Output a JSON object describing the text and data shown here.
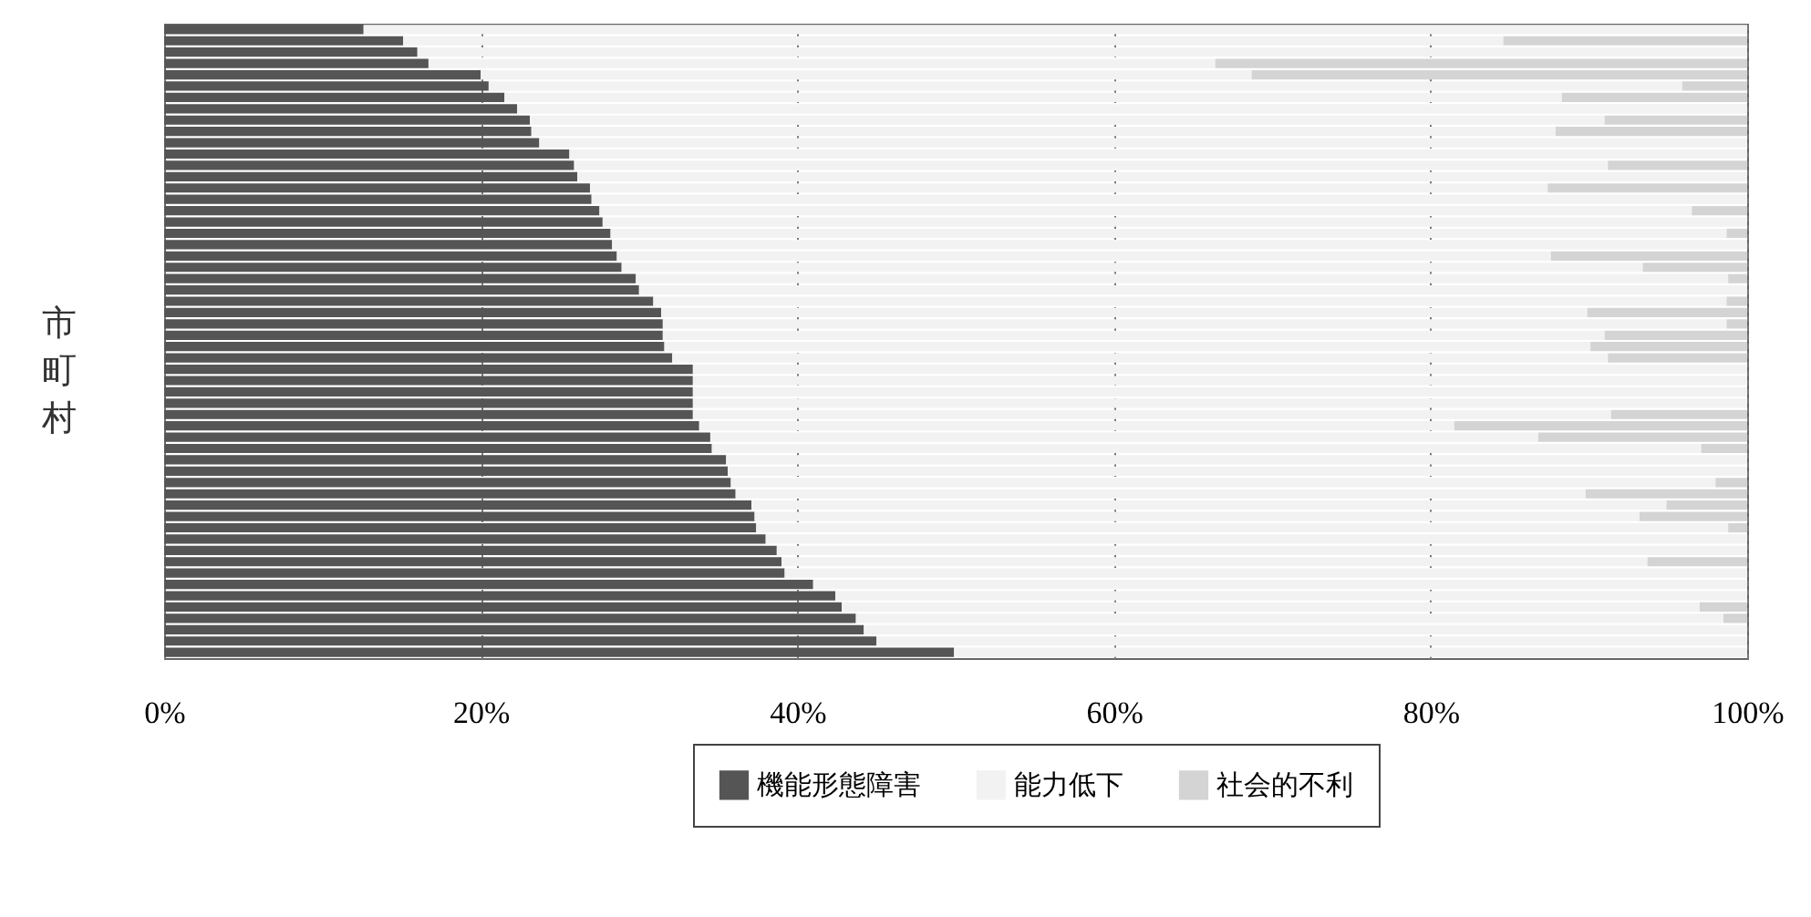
{
  "chart_data": {
    "type": "bar",
    "orientation": "horizontal",
    "stacked": true,
    "ylabel": "市町村",
    "legend": "bottom right",
    "grid": "x",
    "categories": [
      null,
      null,
      null,
      null,
      null,
      null,
      null,
      null,
      null,
      null,
      null,
      null,
      null,
      null,
      null,
      null,
      null,
      null,
      null,
      null,
      null,
      null,
      null,
      null,
      null,
      null,
      null,
      null,
      null,
      null,
      null,
      null,
      null,
      null,
      null,
      null,
      null,
      null,
      null,
      null,
      null,
      null,
      null,
      null,
      null,
      null,
      null,
      null,
      null,
      null,
      null,
      null,
      null,
      null,
      null,
      null
    ],
    "xlim": [
      0,
      100
    ],
    "xticks": [
      {
        "value": 0,
        "label": "0%"
      },
      {
        "value": 20,
        "label": "20%"
      },
      {
        "value": 40,
        "label": "40%"
      },
      {
        "value": 60,
        "label": "60%"
      },
      {
        "value": 80,
        "label": "80%"
      },
      {
        "value": 100,
        "label": "100%"
      }
    ],
    "series": [
      {
        "name": "機能形態障害",
        "color": "#555555",
        "values": [
          12.6,
          15.1,
          16.0,
          16.7,
          20.0,
          20.5,
          21.5,
          22.3,
          23.1,
          23.2,
          23.7,
          25.6,
          25.9,
          26.1,
          26.9,
          27.0,
          27.5,
          27.7,
          28.2,
          28.3,
          28.6,
          28.9,
          29.8,
          30.0,
          30.9,
          31.4,
          31.5,
          31.5,
          31.6,
          32.1,
          33.4,
          33.4,
          33.4,
          33.4,
          33.4,
          33.8,
          34.5,
          34.6,
          35.5,
          35.6,
          35.8,
          36.1,
          37.1,
          37.3,
          37.4,
          38.0,
          38.7,
          39.0,
          39.2,
          41.0,
          42.4,
          42.8,
          43.7,
          44.2,
          45.0,
          49.9
        ]
      },
      {
        "name": "能力低下",
        "color": "#f2f2f2",
        "values": [
          87.4,
          69.5,
          84.0,
          49.7,
          48.7,
          75.4,
          66.8,
          77.7,
          67.9,
          64.7,
          76.3,
          74.4,
          65.3,
          73.9,
          60.5,
          73.0,
          69.0,
          72.3,
          70.5,
          71.7,
          59.0,
          64.5,
          69.0,
          70.0,
          67.8,
          58.5,
          67.2,
          59.5,
          58.5,
          59.1,
          66.6,
          66.6,
          66.6,
          66.6,
          58.0,
          47.7,
          52.3,
          62.5,
          64.5,
          64.4,
          62.2,
          53.7,
          57.8,
          55.9,
          61.4,
          62.0,
          61.3,
          54.7,
          60.8,
          59.0,
          57.6,
          54.2,
          54.8,
          55.8,
          55.0,
          50.1
        ]
      },
      {
        "name": "社会的不利",
        "color": "#d4d4d4",
        "values": [
          0,
          15.4,
          0,
          33.6,
          31.3,
          4.1,
          11.7,
          0,
          9.0,
          12.1,
          0,
          0,
          8.8,
          0,
          12.6,
          0,
          3.5,
          0,
          1.3,
          0,
          12.4,
          6.6,
          1.2,
          0,
          1.3,
          10.1,
          1.3,
          9.0,
          9.9,
          8.8,
          0,
          0,
          0,
          0,
          8.6,
          18.5,
          13.2,
          2.9,
          0,
          0,
          2.0,
          10.2,
          5.1,
          6.8,
          1.2,
          0,
          0,
          6.3,
          0,
          0,
          0,
          3.0,
          1.5,
          0,
          0,
          0
        ]
      }
    ]
  }
}
